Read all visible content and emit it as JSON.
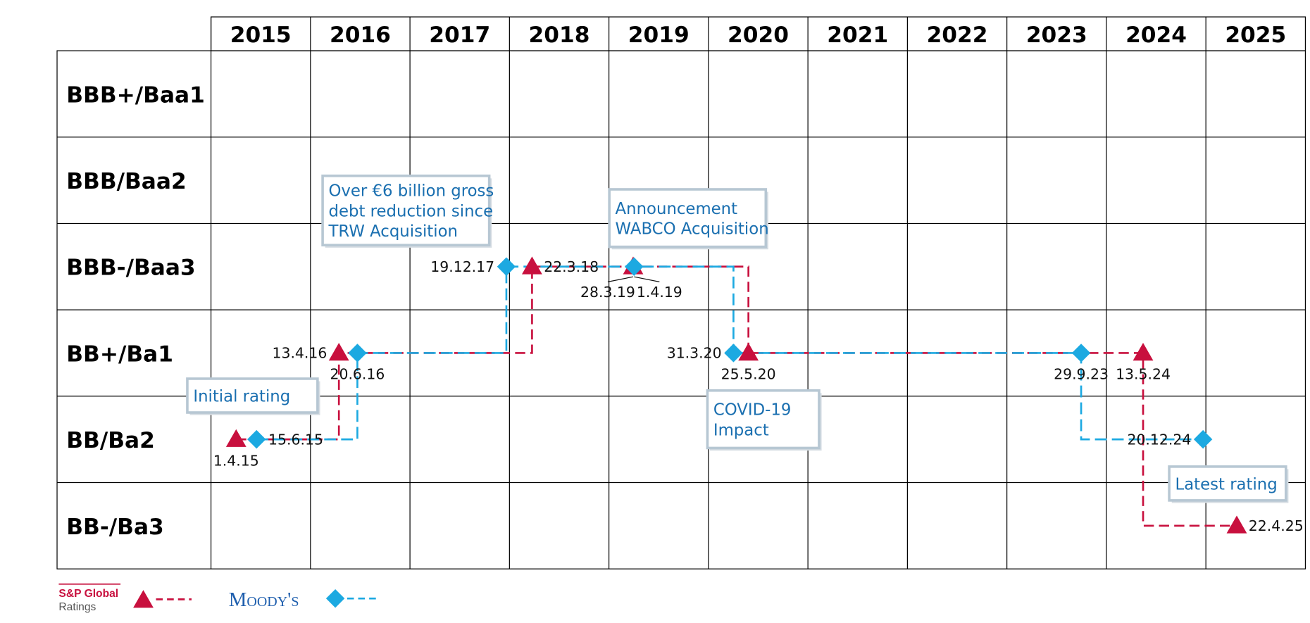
{
  "years": [
    2015,
    2016,
    2017,
    2018,
    2019,
    2020,
    2021,
    2022,
    2023,
    2024,
    2025
  ],
  "ratings": [
    "BBB+/Baa1",
    "BBB/Baa2",
    "BBB-/Baa3",
    "BB+/Ba1",
    "BB/Ba2",
    "BB-/Ba3"
  ],
  "series": [
    {
      "name": "S&P Global",
      "subname": "Ratings",
      "color": "#c8103e",
      "marker": "triangle",
      "events": [
        {
          "date": "1.4.15",
          "rating": "BB/Ba2"
        },
        {
          "date": "13.4.16",
          "rating": "BB+/Ba1"
        },
        {
          "date": "22.3.18",
          "rating": "BBB-/Baa3"
        },
        {
          "date": "28.3.19",
          "rating": "BBB-/Baa3"
        },
        {
          "date": "25.5.20",
          "rating": "BB+/Ba1"
        },
        {
          "date": "13.5.24",
          "rating": "BB+/Ba1"
        },
        {
          "date": "22.4.25",
          "rating": "BB-/Ba3"
        }
      ]
    },
    {
      "name": "Moody's",
      "color": "#1ca9e1",
      "marker": "diamond",
      "events": [
        {
          "date": "15.6.15",
          "rating": "BB/Ba2"
        },
        {
          "date": "20.6.16",
          "rating": "BB+/Ba1"
        },
        {
          "date": "19.12.17",
          "rating": "BBB-/Baa3"
        },
        {
          "date": "1.4.19",
          "rating": "BBB-/Baa3"
        },
        {
          "date": "31.3.20",
          "rating": "BB+/Ba1"
        },
        {
          "date": "29.9.23",
          "rating": "BB+/Ba1"
        },
        {
          "date": "20.12.24",
          "rating": "BB/Ba2"
        }
      ]
    }
  ],
  "annotations": [
    {
      "lines": [
        "Over €6 billion gross",
        "debt reduction since",
        "TRW Acquisition"
      ]
    },
    {
      "lines": [
        "Announcement",
        "WABCO Acquisition"
      ]
    },
    {
      "lines": [
        "Initial rating"
      ]
    },
    {
      "lines": [
        "COVID-19",
        "Impact"
      ]
    },
    {
      "lines": [
        "Latest rating"
      ]
    }
  ]
}
